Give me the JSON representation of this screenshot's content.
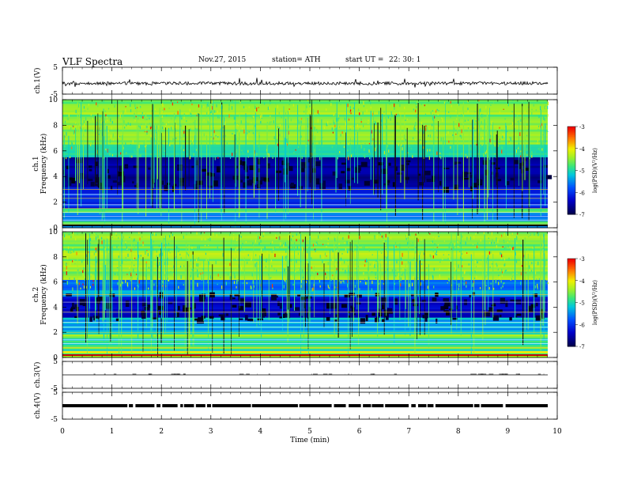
{
  "header": {
    "title": "VLF  Spectra",
    "date": "Nov.27, 2015",
    "station": "station= ATH",
    "start": "start  UT  =",
    "ut": "22: 30: 1"
  },
  "chart_data": [
    {
      "type": "line",
      "panel": "ch1-waveform",
      "ylabel": "ch.1(V)",
      "ylim": [
        -5,
        5
      ],
      "y_ticks": [
        "5",
        "-5"
      ],
      "xlim": [
        0,
        10
      ],
      "baseline_value": -1,
      "color": "#000000"
    },
    {
      "type": "heatmap",
      "panel": "ch1-spectrogram",
      "ylabel": "ch.1",
      "ylabel2": "Frequency  (kHz)",
      "ylim": [
        0,
        10
      ],
      "y_ticks": [
        "0",
        "2",
        "4",
        "6",
        "8",
        "10"
      ],
      "xlim": [
        0,
        10
      ],
      "colorbar": {
        "label": "log(PSD)(V²/Hz)",
        "range": [
          -7,
          -3
        ],
        "ticks": [
          "-3",
          "-4",
          "-5",
          "-6",
          "-7"
        ]
      }
    },
    {
      "type": "heatmap",
      "panel": "ch2-spectrogram",
      "ylabel": "ch.2",
      "ylabel2": "Frequency  (kHz)",
      "ylim": [
        0,
        10
      ],
      "y_ticks": [
        "0",
        "2",
        "4",
        "6",
        "8",
        "10"
      ],
      "xlim": [
        0,
        10
      ],
      "colorbar": {
        "label": "log(PSD)(V²/Hz)",
        "range": [
          -7,
          -3
        ],
        "ticks": [
          "-3",
          "-4",
          "-5",
          "-6",
          "-7"
        ]
      }
    },
    {
      "type": "line",
      "panel": "ch3-waveform",
      "ylabel": "ch.3(V)",
      "ylim": [
        -5,
        5
      ],
      "y_ticks": [
        "5",
        "-5"
      ],
      "xlim": [
        0,
        10
      ],
      "baseline_value": 0,
      "color": "#000000"
    },
    {
      "type": "line",
      "panel": "ch4-waveform",
      "ylabel": "ch.4(V)",
      "ylim": [
        -5,
        5
      ],
      "y_ticks": [
        "5",
        "-5"
      ],
      "xlim": [
        0,
        10
      ],
      "baseline_value": 0,
      "color": "#000000"
    }
  ],
  "x_axis": {
    "label": "Time  (min)",
    "ticks": [
      "0",
      "1",
      "2",
      "3",
      "4",
      "5",
      "6",
      "7",
      "8",
      "9",
      "10"
    ]
  }
}
